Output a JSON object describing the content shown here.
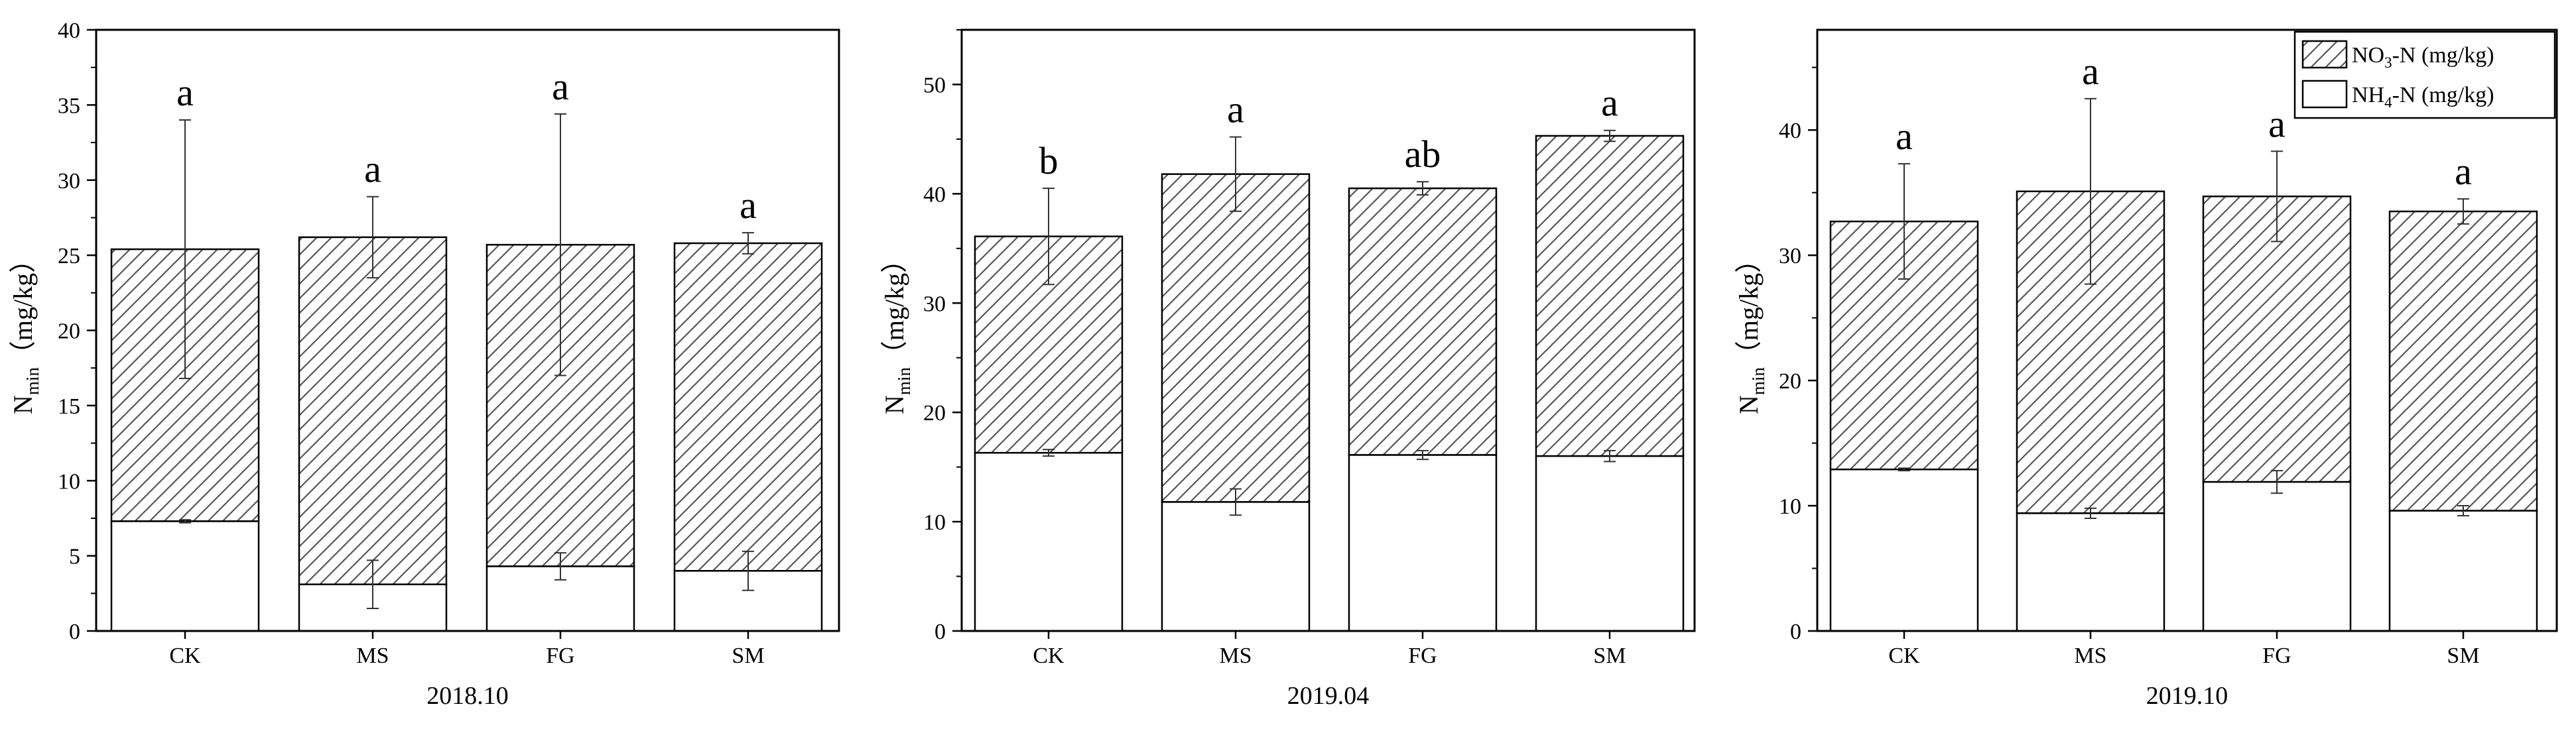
{
  "colors": {
    "axis": "#000000",
    "bar_fill": "#ffffff",
    "hatch": "#555555",
    "error_bar": "#333333",
    "text": "#000000"
  },
  "legend": {
    "items": [
      {
        "label_main": "NO",
        "label_sub": "3",
        "label_tail": "-N (mg/kg)",
        "pattern": "hatched"
      },
      {
        "label_main": "NH",
        "label_sub": "4",
        "label_tail": "-N (mg/kg)",
        "pattern": "plain"
      }
    ]
  },
  "chart_data": [
    {
      "type": "bar",
      "stacked": true,
      "title": "2018.10",
      "ylabel_main": "N",
      "ylabel_sub": "min",
      "ylabel_tail": "（mg/kg）",
      "ylim": [
        0,
        40
      ],
      "yticks": [
        0,
        5,
        10,
        15,
        20,
        25,
        30,
        35,
        40
      ],
      "categories": [
        "CK",
        "MS",
        "FG",
        "SM"
      ],
      "series": [
        {
          "name": "NH4+-N (mg/kg)",
          "values": [
            7.3,
            3.1,
            4.3,
            4.0
          ],
          "errors": [
            0.1,
            1.6,
            0.9,
            1.3
          ]
        },
        {
          "name": "NO3--N (mg/kg)",
          "values": [
            18.1,
            23.1,
            21.4,
            21.8
          ],
          "totals": [
            25.4,
            26.2,
            25.7,
            25.8
          ],
          "errors": [
            8.6,
            2.7,
            8.7,
            0.7
          ]
        }
      ],
      "significance": [
        "a",
        "a",
        "a",
        "a"
      ]
    },
    {
      "type": "bar",
      "stacked": true,
      "title": "2019.04",
      "ylabel_main": "N",
      "ylabel_sub": "min",
      "ylabel_tail": "（mg/kg）",
      "ylim": [
        0,
        55
      ],
      "yticks": [
        0,
        10,
        20,
        30,
        40,
        50
      ],
      "categories": [
        "CK",
        "MS",
        "FG",
        "SM"
      ],
      "series": [
        {
          "name": "NH4+-N (mg/kg)",
          "values": [
            16.3,
            11.8,
            16.1,
            16.0
          ],
          "errors": [
            0.3,
            1.2,
            0.4,
            0.5
          ]
        },
        {
          "name": "NO3--N (mg/kg)",
          "values": [
            19.8,
            30.0,
            24.4,
            29.3
          ],
          "totals": [
            36.1,
            41.8,
            40.5,
            45.3
          ],
          "errors": [
            4.4,
            3.4,
            0.6,
            0.5
          ]
        }
      ],
      "significance": [
        "b",
        "a",
        "ab",
        "a"
      ]
    },
    {
      "type": "bar",
      "stacked": true,
      "title": "2019.10",
      "ylabel_main": "N",
      "ylabel_sub": "min",
      "ylabel_tail": "（mg/kg）",
      "ylim": [
        0,
        48
      ],
      "yticks": [
        0,
        10,
        20,
        30,
        40
      ],
      "categories": [
        "CK",
        "MS",
        "FG",
        "SM"
      ],
      "series": [
        {
          "name": "NH4+-N (mg/kg)",
          "values": [
            12.9,
            9.4,
            11.9,
            9.6
          ],
          "errors": [
            0.1,
            0.4,
            0.9,
            0.4
          ]
        },
        {
          "name": "NO3--N (mg/kg)",
          "values": [
            19.8,
            25.7,
            22.8,
            23.9
          ],
          "totals": [
            32.7,
            35.1,
            34.7,
            33.5
          ],
          "errors": [
            4.6,
            7.4,
            3.6,
            1.0
          ]
        }
      ],
      "significance": [
        "a",
        "a",
        "a",
        "a"
      ]
    }
  ]
}
